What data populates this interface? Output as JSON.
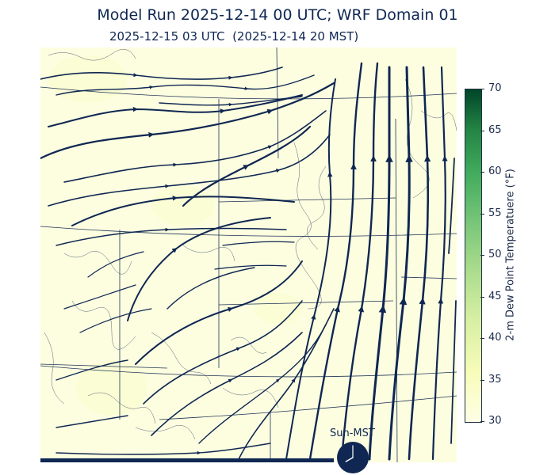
{
  "header": {
    "title": "Model Run 2025-12-14 00 UTC; WRF Domain 01",
    "subtitle": "2025-12-15 03 UTC  (2025-12-14 20 MST)"
  },
  "colorbar": {
    "label": "2-m Dew Point Temperatuere (°F)",
    "ticks": [
      "30",
      "35",
      "40",
      "45",
      "50",
      "55",
      "60",
      "65",
      "70"
    ],
    "min": 30,
    "max": 70,
    "colors": [
      "#ffffe5",
      "#f7fcb9",
      "#d9f0a3",
      "#addd8e",
      "#78c679",
      "#41ab5d",
      "#238443",
      "#004529"
    ]
  },
  "map": {
    "field": "2-m Dew Point Temperature",
    "overlay": "wind streamlines",
    "streamline_color": "#0f2752",
    "field_color": "#fdfee0"
  },
  "clock": {
    "label": "Sun-MST",
    "local_time": "20:00"
  }
}
